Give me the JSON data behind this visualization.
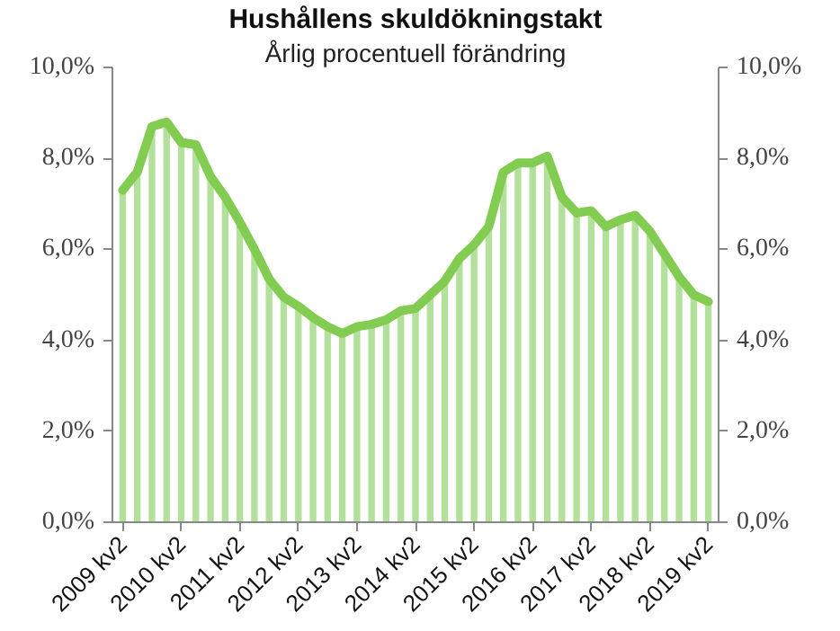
{
  "chart_data": {
    "type": "bar",
    "title": "Hushållens skuldökningstakt",
    "subtitle": "Årlig procentuell förändring",
    "categories": [
      "2009 kv2",
      null,
      null,
      null,
      "2010 kv2",
      null,
      null,
      null,
      "2011 kv2",
      null,
      null,
      null,
      "2012 kv2",
      null,
      null,
      null,
      "2013 kv2",
      null,
      null,
      null,
      "2014 kv2",
      null,
      null,
      null,
      "2015 kv2",
      null,
      null,
      null,
      "2016 kv2",
      null,
      null,
      null,
      "2017 kv2",
      null,
      null,
      null,
      "2018 kv2",
      null,
      null,
      null,
      "2019 kv2"
    ],
    "series": [
      {
        "color": "#b3e09a",
        "values": [
          7.3,
          7.7,
          8.7,
          8.8,
          8.35,
          8.3,
          7.6,
          7.15,
          6.6,
          6.0,
          5.35,
          4.95,
          4.75,
          4.5,
          4.3,
          4.15,
          4.3,
          4.35,
          4.45,
          4.65,
          4.7,
          5.0,
          5.3,
          5.8,
          6.1,
          6.5,
          7.7,
          7.9,
          7.9,
          8.05,
          7.15,
          6.8,
          6.85,
          6.5,
          6.65,
          6.75,
          6.4,
          5.9,
          5.4,
          5.0,
          4.85
        ]
      },
      {
        "type": "line",
        "color": "#82cc52",
        "values": [
          7.3,
          7.7,
          8.7,
          8.8,
          8.35,
          8.3,
          7.6,
          7.15,
          6.6,
          6.0,
          5.35,
          4.95,
          4.75,
          4.5,
          4.3,
          4.15,
          4.3,
          4.35,
          4.45,
          4.65,
          4.7,
          5.0,
          5.3,
          5.8,
          6.1,
          6.5,
          7.7,
          7.9,
          7.9,
          8.05,
          7.15,
          6.8,
          6.85,
          6.5,
          6.65,
          6.75,
          6.4,
          5.9,
          5.4,
          5.0,
          4.85
        ]
      }
    ],
    "ylim": [
      0,
      10
    ],
    "yticks": [
      {
        "value": 0,
        "label": "0,0%"
      },
      {
        "value": 2,
        "label": "2,0%"
      },
      {
        "value": 4,
        "label": "4,0%"
      },
      {
        "value": 6,
        "label": "6,0%"
      },
      {
        "value": 8,
        "label": "8,0%"
      },
      {
        "value": 10,
        "label": "10,0%"
      }
    ],
    "y2lim": [
      0,
      10
    ],
    "y2ticks": [
      {
        "value": 0,
        "label": "0,0%"
      },
      {
        "value": 2,
        "label": "2,0%"
      },
      {
        "value": 4,
        "label": "4,0%"
      },
      {
        "value": 6,
        "label": "6,0%"
      },
      {
        "value": 8,
        "label": "8,0%"
      },
      {
        "value": 10,
        "label": "10,0%"
      }
    ],
    "grid": false
  }
}
